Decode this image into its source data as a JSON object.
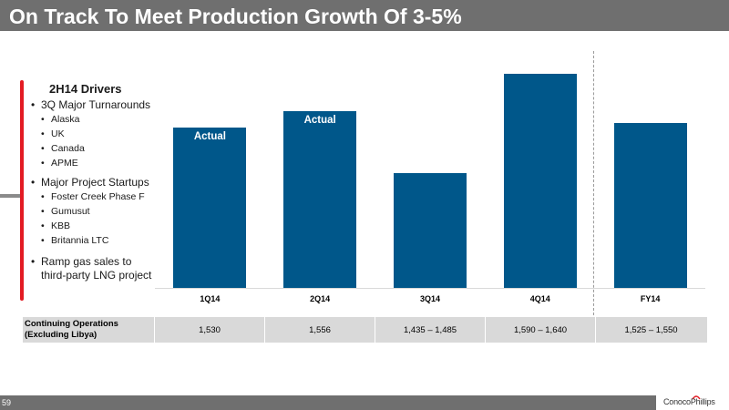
{
  "slide": {
    "title": "On Track To Meet Production Growth Of 3-5%",
    "page_number": "59",
    "logo_text": "ConocoPhillips"
  },
  "drivers": {
    "heading": "2H14 Drivers",
    "items": [
      {
        "label": "3Q Major Turnarounds",
        "subitems": [
          "Alaska",
          "UK",
          "Canada",
          "APME"
        ]
      },
      {
        "label": "Major Project Startups",
        "subitems": [
          "Foster Creek Phase F",
          "Gumusut",
          "KBB",
          "Britannia LTC"
        ]
      },
      {
        "label": "Ramp gas sales to third-party LNG project",
        "subitems": []
      }
    ]
  },
  "chart_data": {
    "type": "bar",
    "title": "",
    "xlabel": "",
    "ylabel": "",
    "categories": [
      "1Q14",
      "2Q14",
      "3Q14",
      "4Q14",
      "FY14"
    ],
    "values": [
      1530,
      1556,
      1460,
      1615,
      1538
    ],
    "bar_labels": [
      "Actual",
      "Actual",
      "",
      "",
      ""
    ],
    "bar_color": "#00578a",
    "ylim": [
      1280,
      1650
    ],
    "grid": false,
    "legend": "none"
  },
  "table": {
    "row_label_line1": "Continuing Operations",
    "row_label_line2": "(Excluding Libya)",
    "values": [
      "1,530",
      "1,556",
      "1,435 – 1,485",
      "1,590 – 1,640",
      "1,525 – 1,550"
    ]
  },
  "colors": {
    "title_bar": "#6f6f6f",
    "accent_red": "#e31b23",
    "bar_blue": "#00578a",
    "table_gray": "#d9d9d9"
  }
}
